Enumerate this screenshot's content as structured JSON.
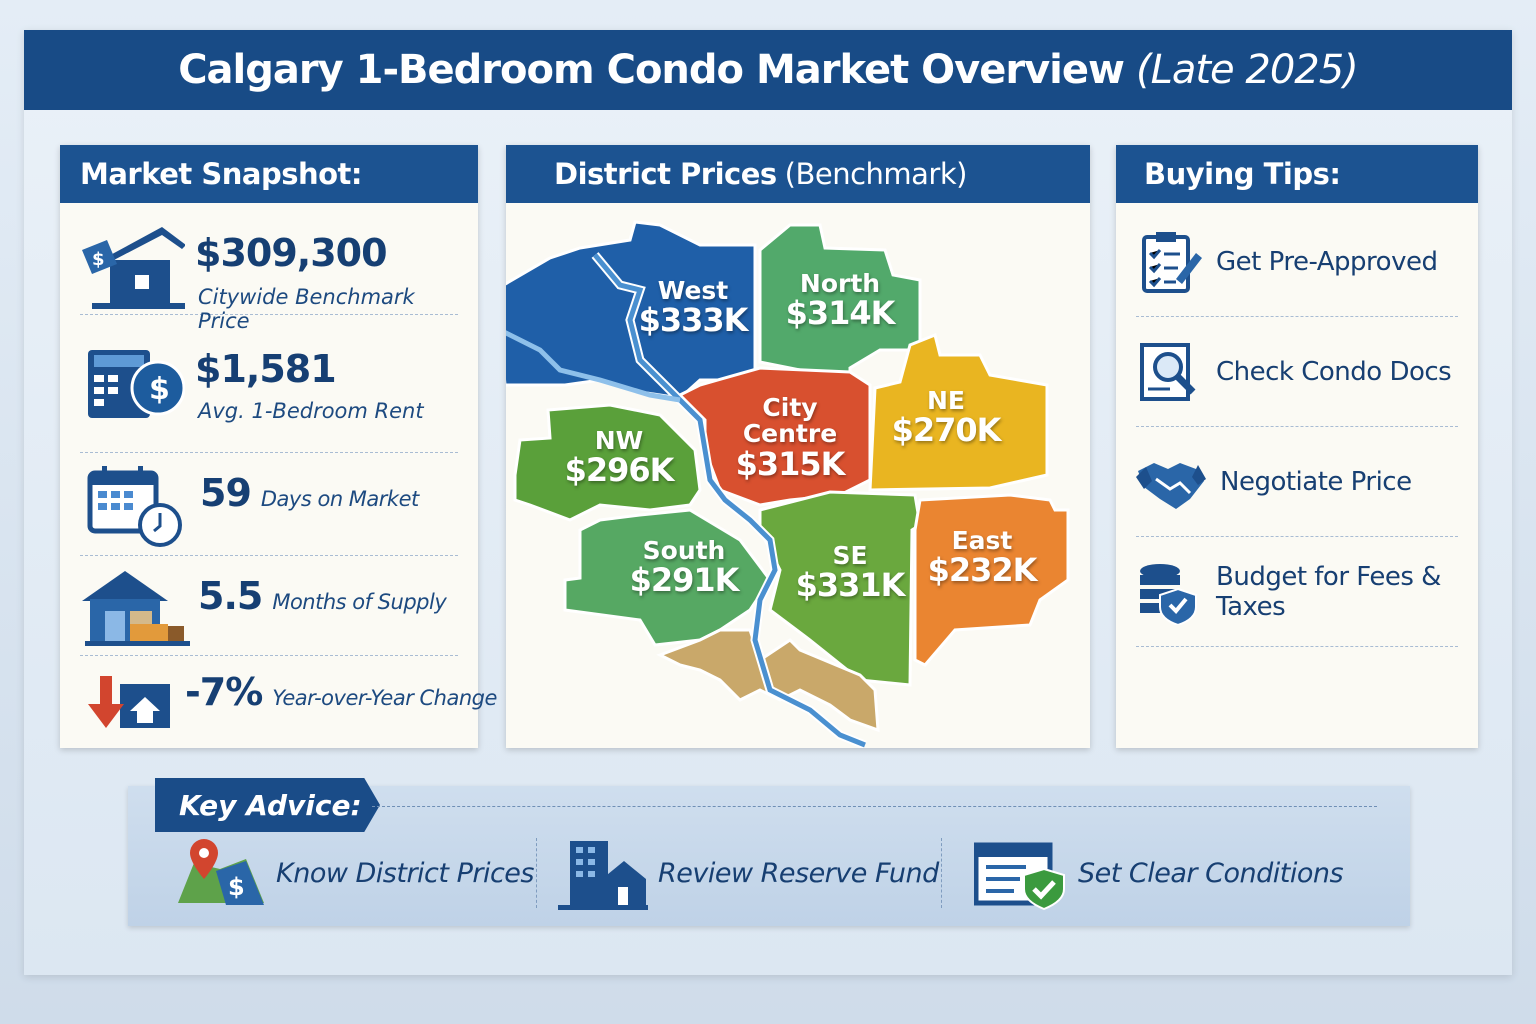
{
  "header": {
    "title": "Calgary 1-Bedroom Condo Market Overview",
    "subtitle": "(Late 2025)"
  },
  "snapshot": {
    "title": "Market Snapshot:",
    "items": [
      {
        "value": "$309,300",
        "label": "Citywide Benchmark Price",
        "icon": "house-price-tag-icon"
      },
      {
        "value": "$1,581",
        "label": "Avg. 1-Bedroom Rent",
        "icon": "calculator-dollar-icon"
      },
      {
        "value": "59",
        "label": "Days on Market",
        "icon": "calendar-clock-icon"
      },
      {
        "value": "5.5",
        "label": "Months of Supply",
        "icon": "house-boxes-icon"
      },
      {
        "value": "-7%",
        "label": "Year-over-Year Change",
        "icon": "down-arrow-house-icon"
      }
    ]
  },
  "districts": {
    "title": "District Prices",
    "title_note": "(Benchmark)",
    "items": [
      {
        "name": "West",
        "price": "$333K",
        "color": "#1f5fa8"
      },
      {
        "name": "North",
        "price": "$314K",
        "color": "#52a96b"
      },
      {
        "name": "City Centre",
        "price": "$315K",
        "color": "#d8502f"
      },
      {
        "name": "NE",
        "price": "$270K",
        "color": "#e9b521"
      },
      {
        "name": "NW",
        "price": "$296K",
        "color": "#5aa03a"
      },
      {
        "name": "South",
        "price": "$291K",
        "color": "#56a863"
      },
      {
        "name": "SE",
        "price": "$331K",
        "color": "#6aa83e"
      },
      {
        "name": "East",
        "price": "$232K",
        "color": "#ea8531"
      }
    ]
  },
  "tips": {
    "title": "Buying Tips:",
    "items": [
      {
        "label": "Get Pre-Approved",
        "icon": "clipboard-checklist-icon"
      },
      {
        "label": "Check Condo Docs",
        "icon": "document-magnifier-icon"
      },
      {
        "label": "Negotiate Price",
        "icon": "handshake-icon"
      },
      {
        "label": "Budget for Fees & Taxes",
        "icon": "coins-shield-icon"
      }
    ]
  },
  "advice": {
    "title": "Key Advice:",
    "items": [
      {
        "label": "Know District Prices",
        "icon": "map-pin-dollar-icon"
      },
      {
        "label": "Review Reserve Fund",
        "icon": "building-icon"
      },
      {
        "label": "Set Clear Conditions",
        "icon": "contract-check-icon"
      }
    ]
  },
  "colors": {
    "brand": "#1a4c88",
    "background": "#dfe9f3",
    "panel": "#fbfaf4"
  }
}
